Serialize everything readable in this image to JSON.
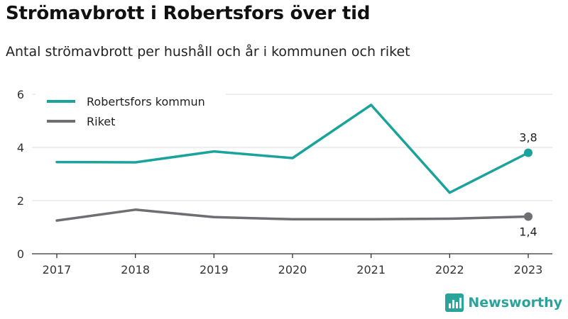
{
  "chart_data": {
    "type": "line",
    "title": "Strömavbrott i Robertsfors över tid",
    "subtitle": "Antal strömavbrott per hushåll och år i kommunen och riket",
    "x": [
      "2017",
      "2018",
      "2019",
      "2020",
      "2021",
      "2022",
      "2023"
    ],
    "ylim": [
      0,
      6
    ],
    "yticks": [
      "0",
      "2",
      "4",
      "6"
    ],
    "grid": true,
    "legend_position": "top-left",
    "series": [
      {
        "name": "Robertsfors kommun",
        "color": "#1aa39a",
        "values": [
          3.45,
          3.44,
          3.85,
          3.6,
          5.6,
          2.3,
          3.8
        ],
        "end_label": "3,8"
      },
      {
        "name": "Riket",
        "color": "#6e6e73",
        "values": [
          1.25,
          1.66,
          1.38,
          1.3,
          1.3,
          1.32,
          1.4
        ],
        "end_label": "1,4"
      }
    ]
  },
  "brand": {
    "name": "Newsworthy",
    "color": "#2aa39a",
    "icon": "newsworthy-logo-icon"
  }
}
